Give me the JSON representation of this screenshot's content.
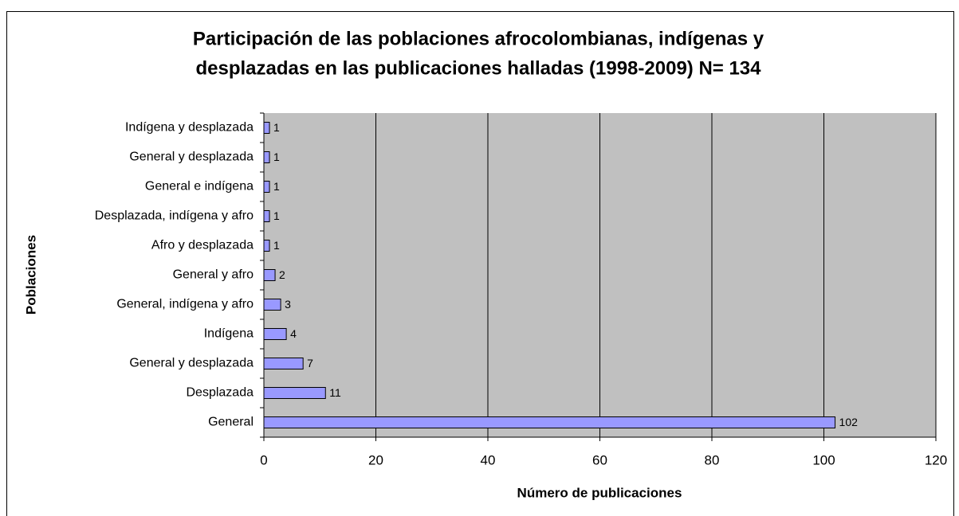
{
  "chart_data": {
    "type": "bar",
    "orientation": "horizontal",
    "title": [
      "Participación de las poblaciones afrocolombianas, indígenas y",
      "desplazadas en las publicaciones halladas (1998-2009) N= 134"
    ],
    "x_label": "Número de publicaciones",
    "y_label": "Poblaciones",
    "categories": [
      "General",
      "Desplazada",
      "General y desplazada",
      "Indígena",
      "General, indígena y afro",
      "General y afro",
      "Afro y desplazada",
      "Desplazada, indígena y afro",
      "General e indígena",
      "General y desplazada",
      "Indígena y desplazada"
    ],
    "values": [
      102,
      11,
      7,
      4,
      3,
      2,
      1,
      1,
      1,
      1,
      1
    ],
    "color": "#9999ff",
    "plot_background": "#c0c0c0",
    "xlim": [
      0,
      120
    ],
    "xticks": [
      0,
      20,
      40,
      60,
      80,
      100,
      120
    ],
    "grid": true
  }
}
